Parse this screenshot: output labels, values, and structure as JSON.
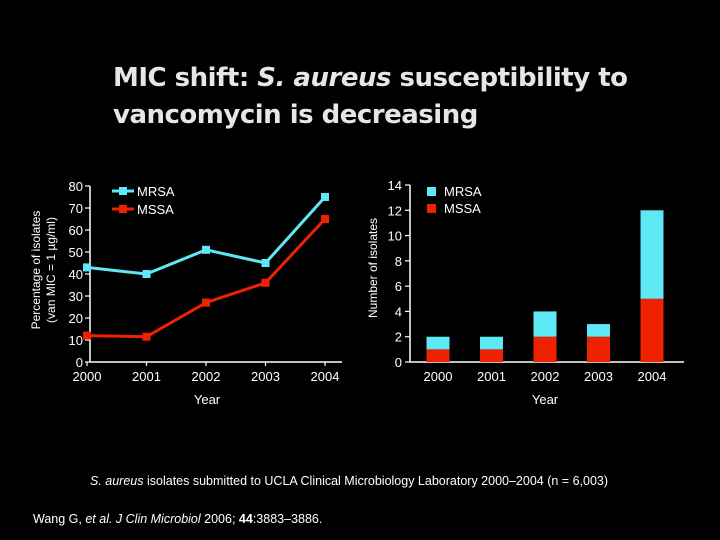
{
  "slide": {
    "title_part1": "MIC shift: ",
    "title_italic": "S. aureus",
    "title_part2": " susceptibility to vancomycin is decreasing",
    "caption_italic": "S. aureus",
    "caption_rest": " isolates submitted to UCLA Clinical Microbiology Laboratory 2000–2004 (n = 6,003)",
    "citation_pre": "Wang G, ",
    "citation_etal": "et al. J Clin Microbiol",
    "citation_year": " 2006; ",
    "citation_vol": "44",
    "citation_pages": ":3883–3886."
  },
  "colors": {
    "mrsa": "#5ee8f5",
    "mssa": "#ee2200",
    "axis": "#ffffff"
  },
  "chart_data": [
    {
      "type": "line",
      "title": "",
      "xlabel": "Year",
      "ylabel": "Percentage of isolates (van MIC = 1 µg/ml)",
      "ylim": [
        0,
        80
      ],
      "yticks": [
        "0",
        "10",
        "20",
        "30",
        "40",
        "50",
        "60",
        "70",
        "80"
      ],
      "x": [
        "2000",
        "2001",
        "2002",
        "2003",
        "2004"
      ],
      "series": [
        {
          "name": "MRSA",
          "values": [
            43,
            40,
            51,
            45,
            75
          ]
        },
        {
          "name": "MSSA",
          "values": [
            12,
            11.5,
            27,
            36,
            65
          ]
        }
      ],
      "legend": "top-left"
    },
    {
      "type": "bar",
      "stacked": true,
      "title": "",
      "xlabel": "Year",
      "ylabel": "Number of isolates",
      "ylim": [
        0,
        14
      ],
      "yticks": [
        "0",
        "2",
        "4",
        "6",
        "8",
        "10",
        "12",
        "14"
      ],
      "categories": [
        "2000",
        "2001",
        "2002",
        "2003",
        "2004"
      ],
      "series": [
        {
          "name": "MRSA",
          "values": [
            1,
            1,
            2,
            1,
            7
          ]
        },
        {
          "name": "MSSA",
          "values": [
            1,
            1,
            2,
            2,
            5
          ]
        }
      ],
      "legend": "top-left"
    }
  ]
}
